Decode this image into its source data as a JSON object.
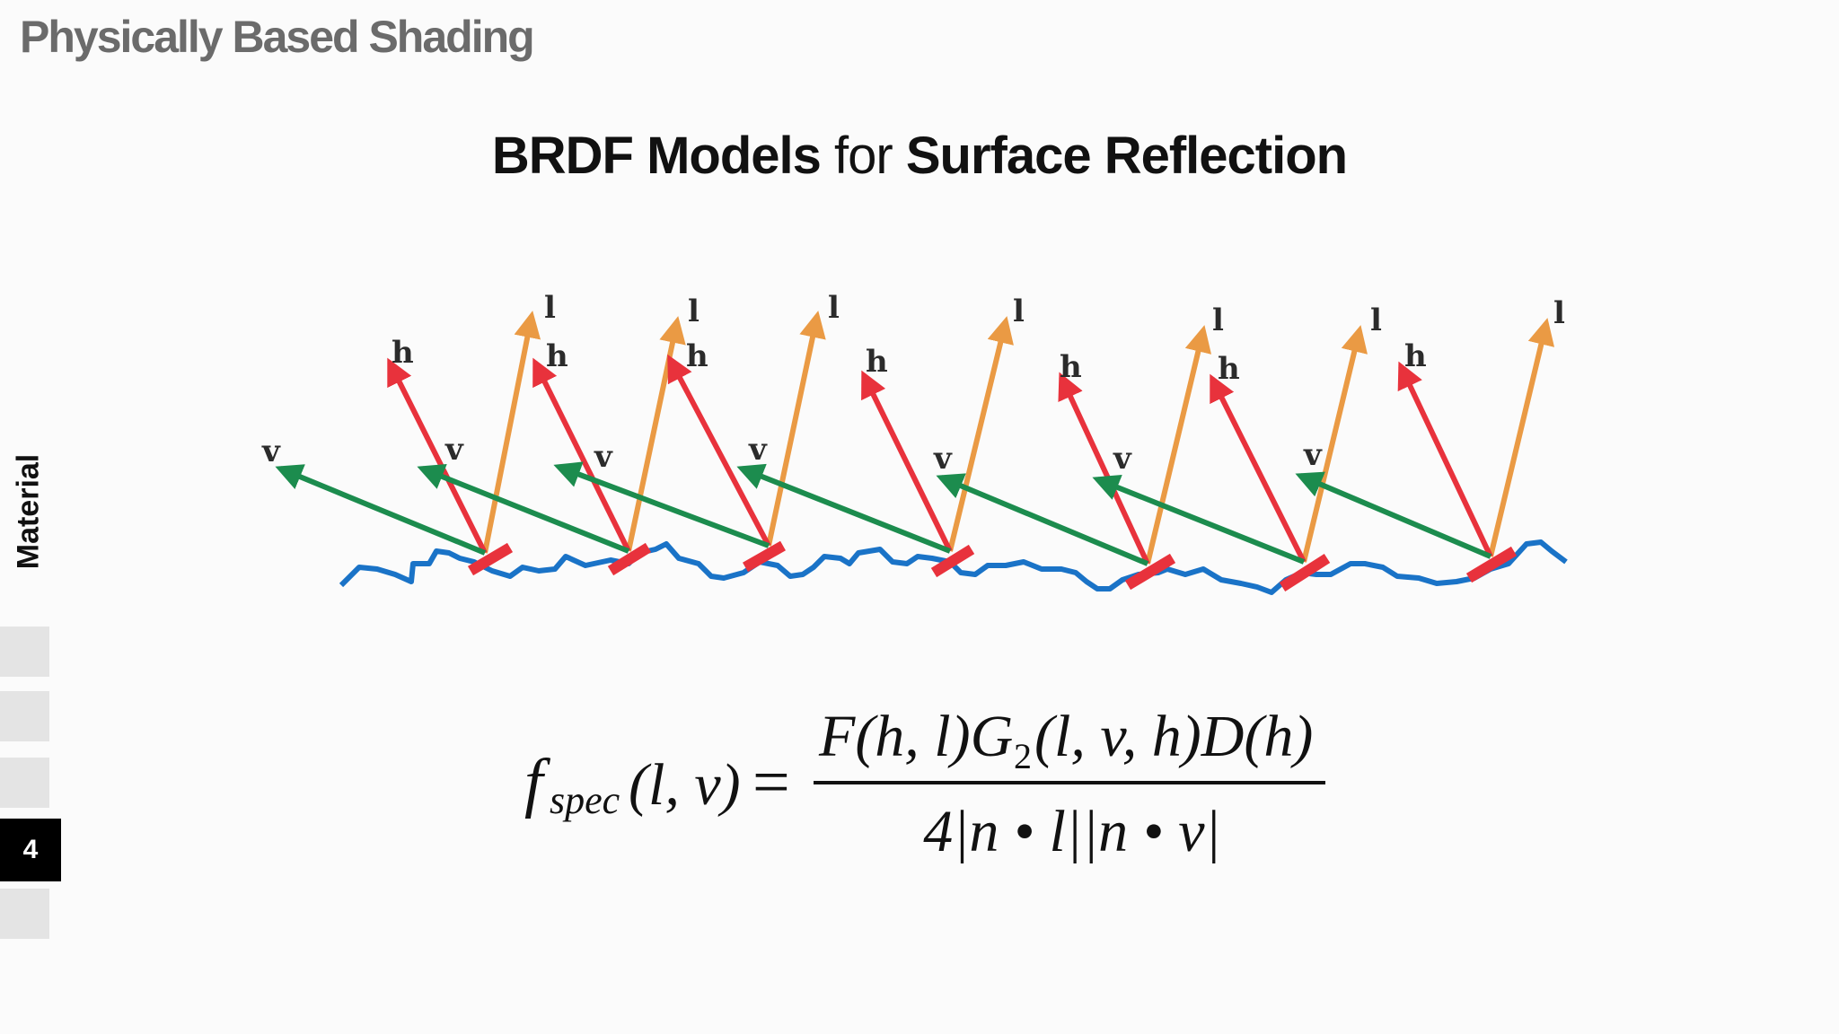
{
  "header": {
    "deck_title": "Physically Based Shading"
  },
  "slide": {
    "title_part1": "BRDF Models",
    "title_part2": "for",
    "title_part3": "Surface Reflection"
  },
  "sidebar": {
    "section_label": "Material",
    "nav": [
      {
        "label": "",
        "active": false
      },
      {
        "label": "",
        "active": false
      },
      {
        "label": "",
        "active": false
      },
      {
        "label": "4",
        "active": true
      },
      {
        "label": "",
        "active": false
      }
    ]
  },
  "diagram": {
    "vector_labels": {
      "light": "l",
      "half": "h",
      "view": "v"
    },
    "colors": {
      "surface": "#1a73c7",
      "facet": "#e8323c",
      "light_vector": "#ea9a44",
      "half_vector": "#e8323c",
      "view_vector": "#1c8c4e"
    },
    "microfacet_count": 7
  },
  "equation": {
    "lhs_f": "f",
    "lhs_sub": "spec",
    "lhs_args": "(l, v)",
    "equals": "=",
    "numerator": "F(h, l)G",
    "numerator_sub": "2",
    "numerator_rest": "(l, v, h)D(h)",
    "denominator": "4|n • l||n • v|"
  }
}
